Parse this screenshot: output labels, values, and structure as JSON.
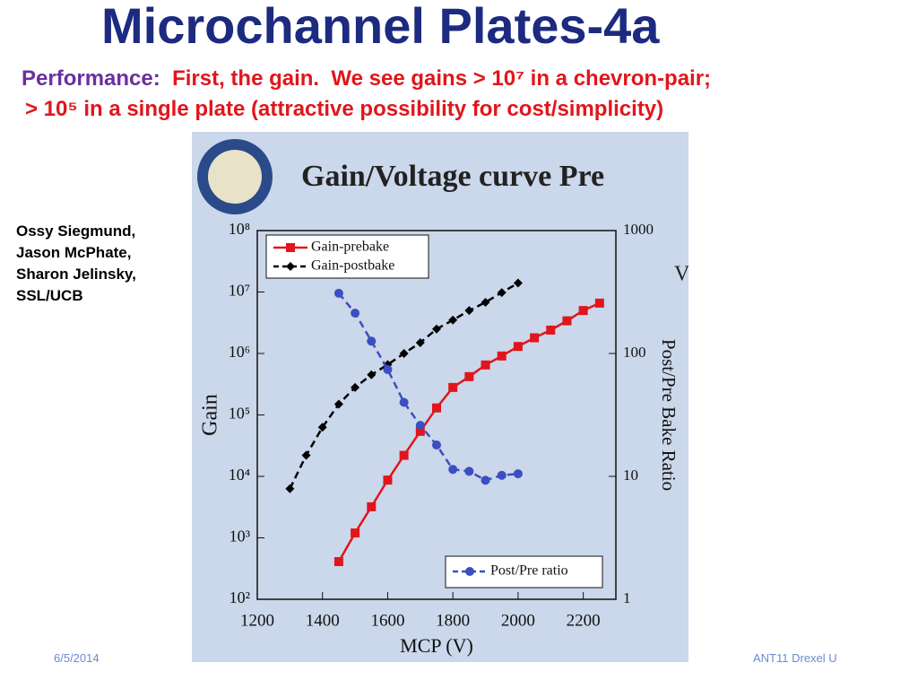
{
  "header": {
    "title": "Microchannel Plates-4a",
    "lead": "Performance:",
    "line1": "First, the gain.  We see gains > 10⁷ in a chevron-pair;",
    "line2": "> 10⁵ in a single plate (attractive possibility for cost/simplicity)"
  },
  "authors": [
    "Ossy Siegmund,",
    "Jason McPhate,",
    "Sharon Jelinsky,",
    "SSL/UCB"
  ],
  "footer": {
    "date": "6/5/2014",
    "venue": "ANT11 Drexel U"
  },
  "chart_data": {
    "type": "line",
    "title": "Gain/Voltage curve Pre",
    "annotation": "V",
    "x_label": "MCP (V)",
    "y_label": "Gain",
    "y2_label": "Post/Pre Bake Ratio",
    "xlim": [
      1200,
      2300
    ],
    "xticks": [
      1200,
      1400,
      1600,
      1800,
      2000,
      2200
    ],
    "ylim": [
      100,
      100000000
    ],
    "ylog": true,
    "yticks": [
      {
        "value": 100,
        "label": "10²"
      },
      {
        "value": 1000,
        "label": "10³"
      },
      {
        "value": 10000,
        "label": "10⁴"
      },
      {
        "value": 100000,
        "label": "10⁵"
      },
      {
        "value": 1000000,
        "label": "10⁶"
      },
      {
        "value": 10000000,
        "label": "10⁷"
      },
      {
        "value": 100000000,
        "label": "10⁸"
      }
    ],
    "y2lim": [
      1,
      1000
    ],
    "y2log": true,
    "y2ticks": [
      1,
      10,
      100,
      1000
    ],
    "series": [
      {
        "name": "Gain-prebake",
        "color": "#e0161c",
        "marker": "square",
        "dashed": false,
        "x": [
          1450,
          1500,
          1550,
          1600,
          1650,
          1700,
          1750,
          1800,
          1850,
          1900,
          1950,
          2000,
          2050,
          2100,
          2150,
          2200,
          2250
        ],
        "values": [
          410,
          1200,
          3200,
          8700,
          22000,
          54000,
          130000,
          280000,
          420000,
          650000,
          910000,
          1300000,
          1800000,
          2400000,
          3400000,
          5000000,
          6600000
        ]
      },
      {
        "name": "Gain-postbake",
        "color": "#000000",
        "marker": "diamond",
        "dashed": true,
        "x": [
          1300,
          1350,
          1400,
          1450,
          1500,
          1550,
          1600,
          1650,
          1700,
          1750,
          1800,
          1850,
          1900,
          1950,
          2000
        ],
        "values": [
          6300,
          22000,
          63000,
          150000,
          280000,
          450000,
          660000,
          1000000,
          1500000,
          2500000,
          3500000,
          5000000,
          6800000,
          9800000,
          14000000
        ]
      },
      {
        "name": "Post/Pre ratio",
        "color": "#3a4fc0",
        "marker": "circle",
        "dashed": true,
        "axis": "y2",
        "x": [
          1450,
          1500,
          1550,
          1600,
          1650,
          1700,
          1750,
          1800,
          1850,
          1900,
          1950,
          2000
        ],
        "values": [
          309,
          213,
          126,
          74,
          40,
          26,
          18,
          11.4,
          11,
          9.3,
          10.2,
          10.5
        ]
      }
    ]
  }
}
